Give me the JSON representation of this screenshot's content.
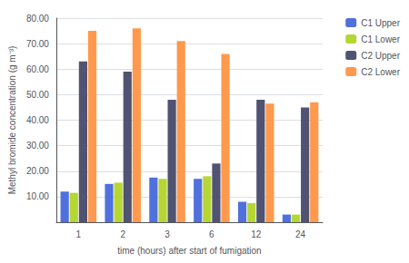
{
  "chart_data": {
    "type": "bar",
    "xlabel": "time (hours) after start of fumigation",
    "ylabel": "Methyl bromide concentration (g m⁻³)",
    "categories": [
      "1",
      "2",
      "3",
      "6",
      "12",
      "24"
    ],
    "series": [
      {
        "name": "C1 Upper",
        "values": [
          12.0,
          15.0,
          17.5,
          17.0,
          8.0,
          3.0
        ]
      },
      {
        "name": "C1 Lower",
        "values": [
          11.5,
          15.5,
          17.0,
          18.0,
          7.5,
          3.0
        ]
      },
      {
        "name": "C2 Upper",
        "values": [
          63.0,
          59.0,
          48.0,
          23.0,
          48.0,
          45.0
        ]
      },
      {
        "name": "C2 Lower",
        "values": [
          75.0,
          76.0,
          71.0,
          66.0,
          46.5,
          47.0
        ]
      }
    ],
    "ylim": [
      0,
      80
    ],
    "yticks": [
      {
        "value": 0,
        "label": " "
      },
      {
        "value": 10,
        "label": "10.00"
      },
      {
        "value": 20,
        "label": "20.00"
      },
      {
        "value": 30,
        "label": "30.00"
      },
      {
        "value": 40,
        "label": "40.00"
      },
      {
        "value": 50,
        "label": "50.00"
      },
      {
        "value": 60,
        "label": "60.00"
      },
      {
        "value": 70,
        "label": "70.00"
      },
      {
        "value": 80,
        "label": "80.00"
      }
    ],
    "grid": true,
    "legend": "right"
  }
}
